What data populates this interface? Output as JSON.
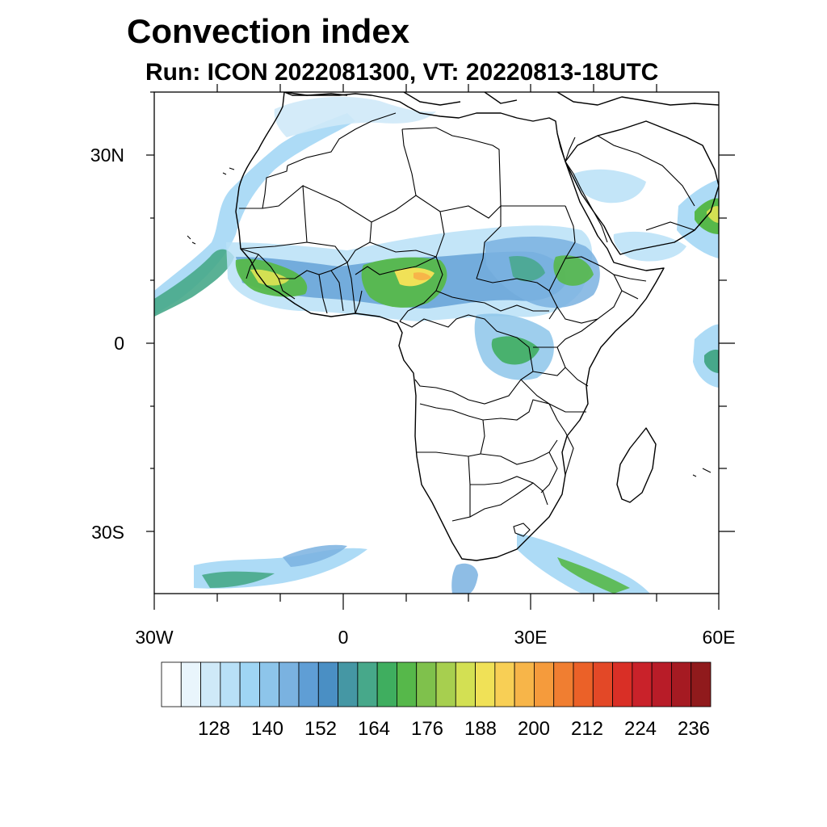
{
  "title": "Convection index",
  "subtitle": "Run: ICON 2022081300,  VT: 20220813-18UTC",
  "map": {
    "region": "Africa",
    "lat_labels": [
      "30N",
      "0",
      "30S"
    ],
    "lon_labels": [
      "30W",
      "0",
      "30E",
      "60E"
    ]
  },
  "colorbar": {
    "tick_labels": [
      "128",
      "140",
      "152",
      "164",
      "176",
      "188",
      "200",
      "212",
      "224",
      "236"
    ],
    "colors": [
      "#ffffff",
      "#e9f5fc",
      "#cfe9f8",
      "#b8e0f7",
      "#9fd5f4",
      "#8dc5ea",
      "#7ab2e0",
      "#5f9ed5",
      "#4a8fc4",
      "#4597a4",
      "#47a88a",
      "#3fae5f",
      "#56b84a",
      "#7fc14c",
      "#a7cf4f",
      "#d3e053",
      "#f0e157",
      "#f8cf55",
      "#f7b549",
      "#f59b3c",
      "#f07e31",
      "#eb6128",
      "#e34827",
      "#d92f26",
      "#c9222a",
      "#b81c28",
      "#a51a22",
      "#901a1c"
    ]
  }
}
